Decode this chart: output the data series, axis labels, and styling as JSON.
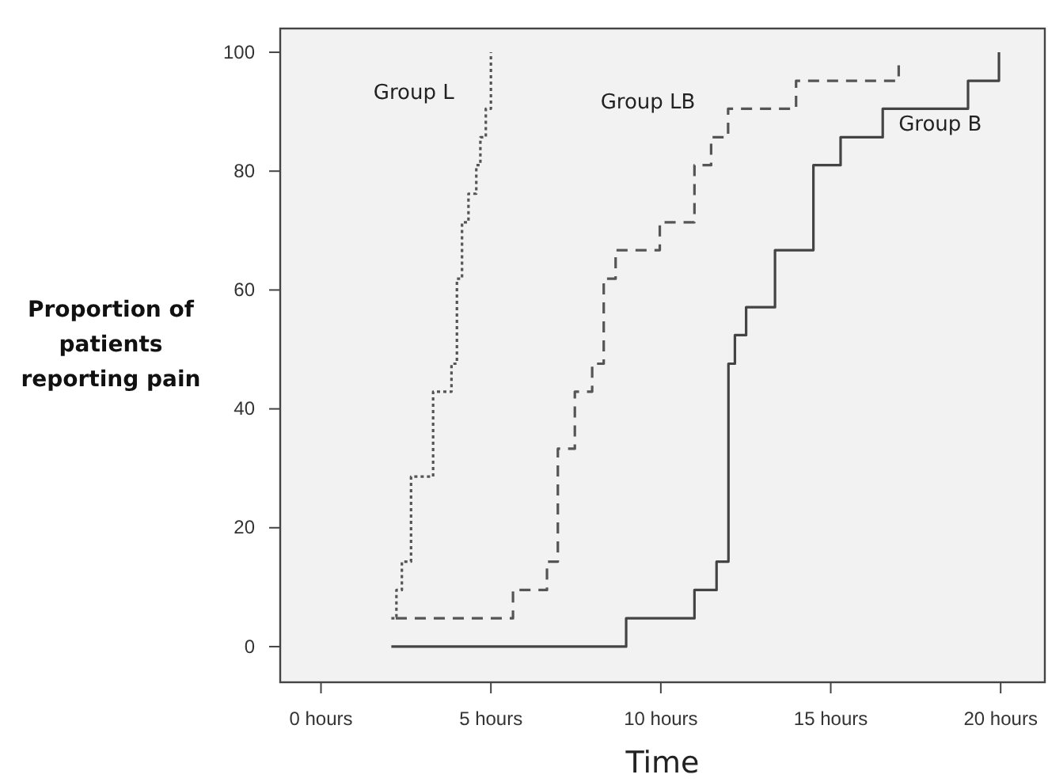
{
  "chart_data": {
    "type": "step",
    "xlabel": "Time",
    "ylabel": "Proportion of patients reporting pain",
    "xlim": [
      -1.2,
      21.3
    ],
    "ylim": [
      -6,
      104
    ],
    "xticks": [
      {
        "value": 0,
        "label": "0 hours"
      },
      {
        "value": 5,
        "label": "5 hours"
      },
      {
        "value": 10,
        "label": "10 hours"
      },
      {
        "value": 15,
        "label": "15 hours"
      },
      {
        "value": 20,
        "label": "20 hours"
      }
    ],
    "yticks": [
      0,
      20,
      40,
      60,
      80,
      100
    ],
    "grid": false,
    "legend": false,
    "marker": "none",
    "series": [
      {
        "name": "Group L",
        "color": "#555555",
        "line_style": "dotted",
        "x": [
          2.07,
          2.22,
          2.38,
          2.65,
          3.3,
          3.84,
          4.0,
          4.15,
          4.34,
          4.57,
          4.69,
          4.85,
          5.0
        ],
        "values": [
          4.76,
          9.52,
          14.3,
          28.6,
          42.9,
          47.6,
          61.9,
          71.4,
          76.2,
          81,
          85.7,
          90.5,
          100
        ]
      },
      {
        "name": "Group LB",
        "color": "#555555",
        "line_style": "dashed",
        "x": [
          2.2,
          5.65,
          6.65,
          6.97,
          7.47,
          7.98,
          8.32,
          8.67,
          9.97,
          10.99,
          11.48,
          11.98,
          13.98,
          17.0
        ],
        "values": [
          4.76,
          9.52,
          14.3,
          33.3,
          42.9,
          47.6,
          61.9,
          66.7,
          71.4,
          81,
          85.7,
          90.5,
          95.2,
          98
        ]
      },
      {
        "name": "Group B",
        "color": "#444444",
        "line_style": "solid",
        "x": [
          2.07,
          8.98,
          10.99,
          11.64,
          11.99,
          12.18,
          12.51,
          13.36,
          14.49,
          15.29,
          16.53,
          19.04,
          19.95
        ],
        "values": [
          0,
          4.76,
          9.52,
          14.3,
          47.6,
          52.4,
          57.1,
          66.7,
          81,
          85.7,
          90.5,
          95.2,
          100
        ]
      }
    ]
  }
}
